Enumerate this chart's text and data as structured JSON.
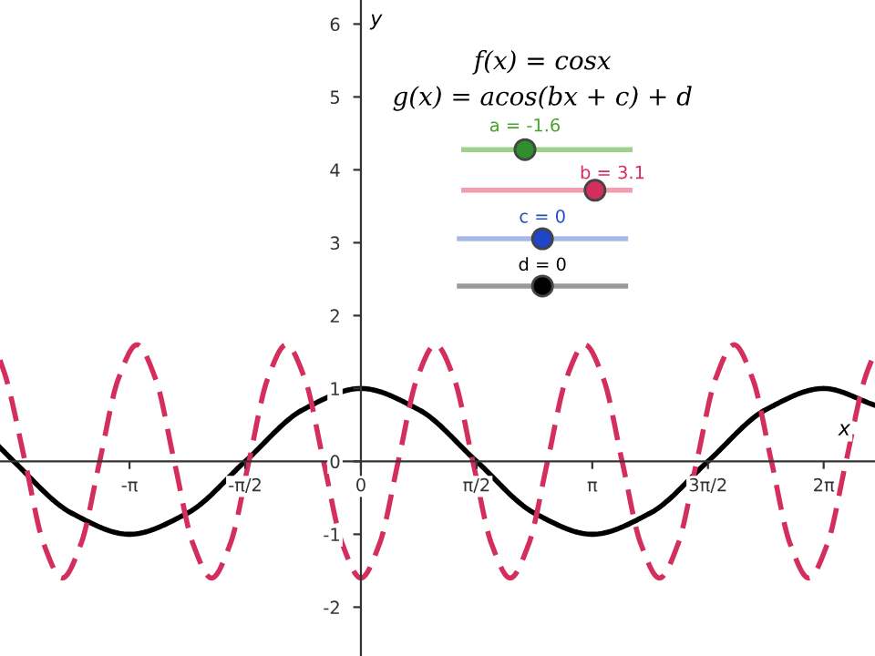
{
  "chart_data": {
    "type": "line",
    "xlabel": "x",
    "ylabel": "y",
    "xlim": [
      -4.9,
      6.98
    ],
    "ylim": [
      -2.67,
      6.33
    ],
    "xticks": [
      {
        "value": -3.1416,
        "label": "-π"
      },
      {
        "value": -1.5708,
        "label": "-π/2"
      },
      0,
      {
        "value": 1.5708,
        "label": "π/2"
      },
      {
        "value": 3.1416,
        "label": "π"
      },
      {
        "value": 4.7124,
        "label": "3π/2"
      },
      {
        "value": 6.2832,
        "label": "2π"
      }
    ],
    "yticks": [
      -2,
      -1,
      0,
      1,
      2,
      3,
      4,
      5,
      6
    ],
    "grid": false,
    "marker": "none",
    "annotations": [
      "f(x) = cosx",
      "g(x) = acos(bx + c) + d",
      "a = -1.6",
      "b = 3.1",
      "c = 0",
      "d = 0"
    ],
    "series": [
      {
        "color": "#000000",
        "line_style": "solid",
        "x": [
          -4.9,
          -4.712,
          -3.927,
          -3.142,
          -2.356,
          -1.571,
          -0.785,
          0,
          0.785,
          1.571,
          2.356,
          3.142,
          3.927,
          4.712,
          5.498,
          6.283,
          6.98
        ],
        "values": [
          0.19,
          0,
          -0.71,
          -1,
          -0.71,
          0,
          0.71,
          1,
          0.71,
          0,
          -0.71,
          -1,
          -0.71,
          0,
          0.71,
          1,
          0.77
        ]
      },
      {
        "color": "#d42e5d",
        "line_style": "dashed",
        "x": [
          -4.9,
          -4.814,
          -4.56,
          -4.307,
          -4.054,
          -3.8,
          -3.547,
          -3.294,
          -3.04,
          -2.787,
          -2.534,
          -2.28,
          -2.027,
          -1.773,
          -1.52,
          -1.267,
          -1.013,
          -0.76,
          -0.507,
          -0.253,
          0,
          0.253,
          0.507,
          0.76,
          1.013,
          1.267,
          1.52,
          1.773,
          2.027,
          2.28,
          2.534,
          2.787,
          3.04,
          3.294,
          3.547,
          3.8,
          4.054,
          4.307,
          4.56,
          4.814,
          5.067,
          5.32,
          5.574,
          5.827,
          6.08,
          6.334,
          6.587,
          6.84,
          6.98
        ],
        "values": [
          1.39,
          1.13,
          0,
          -1.13,
          -1.6,
          -1.13,
          0,
          1.13,
          1.6,
          1.13,
          0,
          -1.13,
          -1.6,
          -1.13,
          0,
          1.13,
          1.6,
          1.13,
          0,
          -1.13,
          -1.6,
          -1.13,
          0,
          1.13,
          1.6,
          1.13,
          0,
          -1.13,
          -1.6,
          -1.13,
          0,
          1.13,
          1.6,
          1.13,
          0,
          -1.13,
          -1.6,
          -1.13,
          0,
          1.13,
          1.6,
          1.13,
          0,
          -1.13,
          -1.6,
          -1.13,
          0,
          1.13,
          1.5
        ]
      }
    ]
  }
}
